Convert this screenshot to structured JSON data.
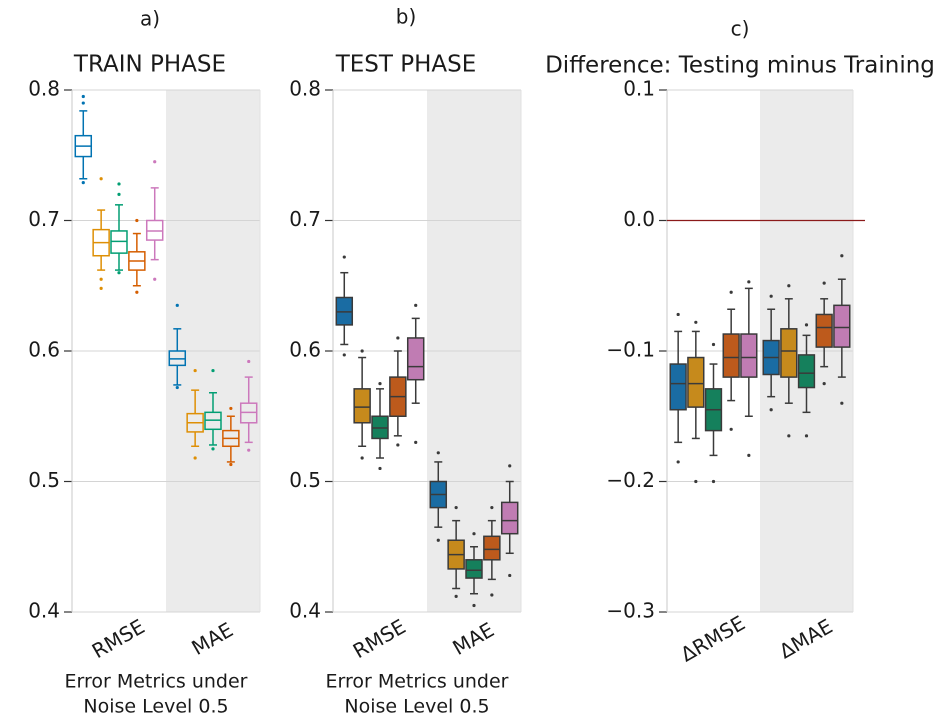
{
  "chart_data": [
    {
      "type": "box",
      "panel_label": "a)",
      "title": "TRAIN PHASE",
      "xlabel_lines": [
        "Error Metrics under",
        "Noise Level 0.5"
      ],
      "categories": [
        "RMSE",
        "MAE"
      ],
      "ylim": [
        0.4,
        0.8
      ],
      "yticks": [
        0.4,
        0.5,
        0.6,
        0.7,
        0.8
      ],
      "grid": true,
      "filled": false,
      "shaded_category": 1,
      "series": [
        {
          "color": "#0173b2",
          "boxes": [
            {
              "q1": 0.749,
              "median": 0.757,
              "q3": 0.765,
              "whislo": 0.732,
              "whishi": 0.784,
              "fliers": [
                0.79,
                0.795,
                0.729
              ]
            },
            {
              "q1": 0.589,
              "median": 0.594,
              "q3": 0.6,
              "whislo": 0.574,
              "whishi": 0.617,
              "fliers": [
                0.635,
                0.572
              ]
            }
          ]
        },
        {
          "color": "#de8f05",
          "boxes": [
            {
              "q1": 0.673,
              "median": 0.683,
              "q3": 0.693,
              "whislo": 0.662,
              "whishi": 0.708,
              "fliers": [
                0.655,
                0.648,
                0.732
              ]
            },
            {
              "q1": 0.538,
              "median": 0.545,
              "q3": 0.552,
              "whislo": 0.527,
              "whishi": 0.57,
              "fliers": [
                0.585,
                0.518
              ]
            }
          ]
        },
        {
          "color": "#029e73",
          "boxes": [
            {
              "q1": 0.675,
              "median": 0.684,
              "q3": 0.692,
              "whislo": 0.662,
              "whishi": 0.712,
              "fliers": [
                0.72,
                0.728,
                0.66
              ]
            },
            {
              "q1": 0.54,
              "median": 0.547,
              "q3": 0.553,
              "whislo": 0.528,
              "whishi": 0.568,
              "fliers": [
                0.585,
                0.525
              ]
            }
          ]
        },
        {
          "color": "#d55e00",
          "boxes": [
            {
              "q1": 0.662,
              "median": 0.669,
              "q3": 0.676,
              "whislo": 0.65,
              "whishi": 0.69,
              "fliers": [
                0.645,
                0.7
              ]
            },
            {
              "q1": 0.527,
              "median": 0.533,
              "q3": 0.539,
              "whislo": 0.515,
              "whishi": 0.55,
              "fliers": [
                0.556,
                0.513
              ]
            }
          ]
        },
        {
          "color": "#cc78bc",
          "boxes": [
            {
              "q1": 0.685,
              "median": 0.692,
              "q3": 0.7,
              "whislo": 0.67,
              "whishi": 0.725,
              "fliers": [
                0.745,
                0.655
              ]
            },
            {
              "q1": 0.545,
              "median": 0.553,
              "q3": 0.56,
              "whislo": 0.53,
              "whishi": 0.58,
              "fliers": [
                0.592,
                0.524
              ]
            }
          ]
        }
      ]
    },
    {
      "type": "box",
      "panel_label": "b)",
      "title": "TEST PHASE",
      "xlabel_lines": [
        "Error Metrics under",
        "Noise Level 0.5"
      ],
      "categories": [
        "RMSE",
        "MAE"
      ],
      "ylim": [
        0.4,
        0.8
      ],
      "yticks": [
        0.4,
        0.5,
        0.6,
        0.7,
        0.8
      ],
      "grid": true,
      "filled": true,
      "shaded_category": 1,
      "series": [
        {
          "color": "#1a6ca3",
          "boxes": [
            {
              "q1": 0.62,
              "median": 0.63,
              "q3": 0.641,
              "whislo": 0.605,
              "whishi": 0.66,
              "fliers": [
                0.672,
                0.597
              ]
            },
            {
              "q1": 0.48,
              "median": 0.49,
              "q3": 0.5,
              "whislo": 0.465,
              "whishi": 0.515,
              "fliers": [
                0.522,
                0.455
              ]
            }
          ]
        },
        {
          "color": "#c68a1c",
          "boxes": [
            {
              "q1": 0.545,
              "median": 0.557,
              "q3": 0.571,
              "whislo": 0.527,
              "whishi": 0.595,
              "fliers": [
                0.6,
                0.518
              ]
            },
            {
              "q1": 0.433,
              "median": 0.444,
              "q3": 0.455,
              "whislo": 0.418,
              "whishi": 0.47,
              "fliers": [
                0.48,
                0.412
              ]
            }
          ]
        },
        {
          "color": "#15805c",
          "boxes": [
            {
              "q1": 0.533,
              "median": 0.541,
              "q3": 0.55,
              "whislo": 0.518,
              "whishi": 0.571,
              "fliers": [
                0.575,
                0.51
              ]
            },
            {
              "q1": 0.426,
              "median": 0.432,
              "q3": 0.44,
              "whislo": 0.414,
              "whishi": 0.45,
              "fliers": [
                0.46,
                0.405
              ]
            }
          ]
        },
        {
          "color": "#bd5a1c",
          "boxes": [
            {
              "q1": 0.55,
              "median": 0.565,
              "q3": 0.58,
              "whislo": 0.535,
              "whishi": 0.6,
              "fliers": [
                0.61,
                0.528
              ]
            },
            {
              "q1": 0.44,
              "median": 0.448,
              "q3": 0.458,
              "whislo": 0.425,
              "whishi": 0.47,
              "fliers": [
                0.48,
                0.413
              ]
            }
          ]
        },
        {
          "color": "#c07cb3",
          "boxes": [
            {
              "q1": 0.578,
              "median": 0.588,
              "q3": 0.61,
              "whislo": 0.56,
              "whishi": 0.625,
              "fliers": [
                0.635,
                0.53
              ]
            },
            {
              "q1": 0.46,
              "median": 0.47,
              "q3": 0.484,
              "whislo": 0.445,
              "whishi": 0.5,
              "fliers": [
                0.512,
                0.428
              ]
            }
          ]
        }
      ]
    },
    {
      "type": "box",
      "panel_label": "c)",
      "title": "Difference: Testing minus Training",
      "categories": [
        "ΔRMSE",
        "ΔMAE"
      ],
      "ylim": [
        -0.3,
        0.1
      ],
      "yticks": [
        {
          "value": -0.3,
          "label": "−0.3"
        },
        {
          "value": -0.2,
          "label": "−0.2"
        },
        {
          "value": -0.1,
          "label": "−0.1"
        },
        {
          "value": 0,
          "label": "0.0"
        },
        0.1
      ],
      "grid": true,
      "filled": true,
      "shaded_category": 1,
      "hline": 0,
      "hline_color": "#8b1a1a",
      "series": [
        {
          "color": "#1a6ca3",
          "boxes": [
            {
              "q1": -0.145,
              "median": -0.125,
              "q3": -0.11,
              "whislo": -0.17,
              "whishi": -0.085,
              "fliers": [
                -0.072,
                -0.185
              ]
            },
            {
              "q1": -0.118,
              "median": -0.105,
              "q3": -0.092,
              "whislo": -0.135,
              "whishi": -0.068,
              "fliers": [
                -0.058,
                -0.145
              ]
            }
          ]
        },
        {
          "color": "#c68a1c",
          "boxes": [
            {
              "q1": -0.143,
              "median": -0.125,
              "q3": -0.105,
              "whislo": -0.167,
              "whishi": -0.085,
              "fliers": [
                -0.078,
                -0.2
              ]
            },
            {
              "q1": -0.12,
              "median": -0.1,
              "q3": -0.083,
              "whislo": -0.14,
              "whishi": -0.06,
              "fliers": [
                -0.05,
                -0.165
              ]
            }
          ]
        },
        {
          "color": "#15805c",
          "boxes": [
            {
              "q1": -0.161,
              "median": -0.145,
              "q3": -0.129,
              "whislo": -0.18,
              "whishi": -0.11,
              "fliers": [
                -0.095,
                -0.2
              ]
            },
            {
              "q1": -0.128,
              "median": -0.117,
              "q3": -0.103,
              "whislo": -0.147,
              "whishi": -0.088,
              "fliers": [
                -0.08,
                -0.165
              ]
            }
          ]
        },
        {
          "color": "#bd5a1c",
          "boxes": [
            {
              "q1": -0.12,
              "median": -0.105,
              "q3": -0.087,
              "whislo": -0.138,
              "whishi": -0.068,
              "fliers": [
                -0.055,
                -0.16
              ]
            },
            {
              "q1": -0.097,
              "median": -0.082,
              "q3": -0.072,
              "whislo": -0.112,
              "whishi": -0.06,
              "fliers": [
                -0.048,
                -0.125
              ]
            }
          ]
        },
        {
          "color": "#c07cb3",
          "boxes": [
            {
              "q1": -0.12,
              "median": -0.105,
              "q3": -0.087,
              "whislo": -0.15,
              "whishi": -0.052,
              "fliers": [
                -0.047,
                -0.18
              ]
            },
            {
              "q1": -0.097,
              "median": -0.082,
              "q3": -0.065,
              "whislo": -0.12,
              "whishi": -0.045,
              "fliers": [
                -0.027,
                -0.14
              ]
            }
          ]
        }
      ]
    }
  ]
}
